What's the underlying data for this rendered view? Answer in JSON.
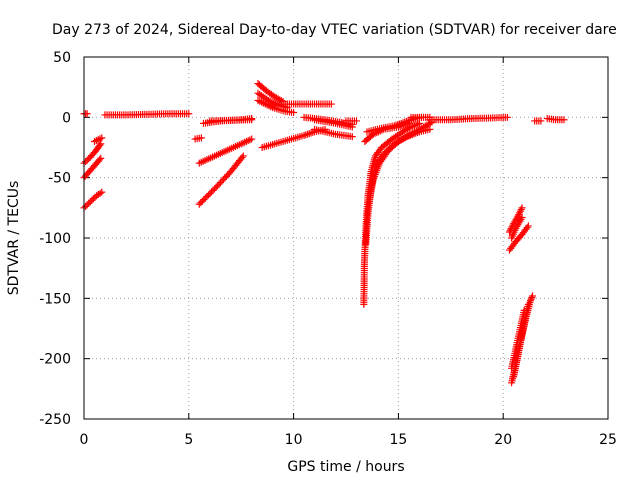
{
  "chart_data": {
    "type": "scatter",
    "title": "Day 273 of 2024, Sidereal Day-to-day VTEC variation (SDTVAR) for receiver dare",
    "xlabel": "GPS time / hours",
    "ylabel": "SDTVAR / TECUs",
    "xlim": [
      0,
      25
    ],
    "ylim": [
      -250,
      50
    ],
    "xticks": [
      0,
      5,
      10,
      15,
      20,
      25
    ],
    "yticks": [
      -250,
      -200,
      -150,
      -100,
      -50,
      0,
      50
    ],
    "grid": true,
    "marker": "plus",
    "color": "#ff0000",
    "series": [
      {
        "name": "s1",
        "points": [
          [
            0.0,
            3
          ],
          [
            0.15,
            3
          ]
        ]
      },
      {
        "name": "s2",
        "points": [
          [
            0.0,
            -38
          ],
          [
            0.3,
            -33
          ],
          [
            0.55,
            -28
          ],
          [
            0.8,
            -22
          ]
        ]
      },
      {
        "name": "s3",
        "points": [
          [
            0.0,
            -50
          ],
          [
            0.25,
            -45
          ],
          [
            0.5,
            -40
          ],
          [
            0.8,
            -34
          ]
        ]
      },
      {
        "name": "s4",
        "points": [
          [
            0.0,
            -75
          ],
          [
            0.3,
            -70
          ],
          [
            0.6,
            -65
          ],
          [
            0.85,
            -62
          ]
        ]
      },
      {
        "name": "s5",
        "points": [
          [
            0.5,
            -20
          ],
          [
            0.85,
            -17
          ]
        ]
      },
      {
        "name": "s6",
        "points": [
          [
            1.0,
            2
          ],
          [
            2.0,
            2
          ],
          [
            3.0,
            2.5
          ],
          [
            4.0,
            3
          ],
          [
            5.0,
            3
          ]
        ]
      },
      {
        "name": "s7",
        "points": [
          [
            5.3,
            -18
          ],
          [
            5.6,
            -17
          ]
        ]
      },
      {
        "name": "s8",
        "points": [
          [
            5.5,
            -38
          ],
          [
            6.5,
            -30
          ],
          [
            7.5,
            -22
          ],
          [
            8.0,
            -18
          ]
        ]
      },
      {
        "name": "s9",
        "points": [
          [
            5.5,
            -72
          ],
          [
            6.3,
            -58
          ],
          [
            7.0,
            -45
          ],
          [
            7.6,
            -32
          ]
        ]
      },
      {
        "name": "s10",
        "points": [
          [
            5.7,
            -5
          ],
          [
            6.5,
            -3
          ],
          [
            7.5,
            -2
          ],
          [
            8.0,
            -1
          ]
        ]
      },
      {
        "name": "s11",
        "points": [
          [
            6.0,
            -3
          ],
          [
            7.0,
            -2.5
          ],
          [
            8.0,
            -2
          ]
        ]
      },
      {
        "name": "s12",
        "points": [
          [
            8.3,
            28
          ],
          [
            8.7,
            22
          ],
          [
            9.1,
            17
          ],
          [
            9.5,
            13
          ]
        ]
      },
      {
        "name": "s13",
        "points": [
          [
            8.3,
            20
          ],
          [
            8.8,
            14
          ],
          [
            9.3,
            10
          ],
          [
            9.7,
            8
          ]
        ]
      },
      {
        "name": "s14",
        "points": [
          [
            8.3,
            14
          ],
          [
            9.0,
            8
          ],
          [
            9.6,
            5
          ],
          [
            10.0,
            4
          ]
        ]
      },
      {
        "name": "s15",
        "points": [
          [
            9.5,
            11
          ],
          [
            10.5,
            11
          ],
          [
            11.5,
            11
          ],
          [
            11.8,
            11
          ]
        ]
      },
      {
        "name": "s16",
        "points": [
          [
            8.5,
            -25
          ],
          [
            9.5,
            -20
          ],
          [
            10.5,
            -15
          ],
          [
            11.0,
            -12
          ],
          [
            11.5,
            -10
          ]
        ]
      },
      {
        "name": "s17",
        "points": [
          [
            10.5,
            0
          ],
          [
            11.5,
            -2
          ],
          [
            12.2,
            -4
          ],
          [
            12.8,
            -6
          ]
        ]
      },
      {
        "name": "s18",
        "points": [
          [
            11.0,
            -2
          ],
          [
            12.0,
            -5
          ],
          [
            12.8,
            -8
          ]
        ]
      },
      {
        "name": "s19",
        "points": [
          [
            11.0,
            -10
          ],
          [
            12.0,
            -14
          ],
          [
            12.8,
            -16
          ]
        ]
      },
      {
        "name": "s20",
        "points": [
          [
            12.5,
            -3
          ],
          [
            13.0,
            -3
          ]
        ]
      },
      {
        "name": "s21",
        "points": [
          [
            13.35,
            -155
          ],
          [
            13.38,
            -120
          ],
          [
            13.45,
            -90
          ],
          [
            13.55,
            -65
          ],
          [
            13.7,
            -45
          ],
          [
            13.9,
            -32
          ],
          [
            14.2,
            -25
          ],
          [
            14.7,
            -18
          ],
          [
            15.2,
            -12
          ],
          [
            15.6,
            -8
          ],
          [
            16.0,
            -5
          ]
        ]
      },
      {
        "name": "s22",
        "points": [
          [
            13.45,
            -105
          ],
          [
            13.55,
            -80
          ],
          [
            13.7,
            -58
          ],
          [
            13.9,
            -42
          ],
          [
            14.2,
            -32
          ],
          [
            14.8,
            -22
          ],
          [
            15.4,
            -16
          ],
          [
            16.0,
            -12
          ],
          [
            16.5,
            -10
          ]
        ]
      },
      {
        "name": "s23",
        "points": [
          [
            13.6,
            -70
          ],
          [
            13.8,
            -52
          ],
          [
            14.1,
            -38
          ],
          [
            14.5,
            -28
          ],
          [
            15.0,
            -20
          ],
          [
            15.6,
            -14
          ],
          [
            16.2,
            -8
          ],
          [
            16.6,
            -4
          ]
        ]
      },
      {
        "name": "s24",
        "points": [
          [
            13.4,
            -20
          ],
          [
            13.8,
            -14
          ],
          [
            14.3,
            -10
          ],
          [
            15.0,
            -8
          ],
          [
            15.5,
            -5
          ]
        ]
      },
      {
        "name": "s25",
        "points": [
          [
            13.5,
            -12
          ],
          [
            14.2,
            -9
          ],
          [
            14.8,
            -7
          ],
          [
            15.3,
            -4
          ],
          [
            15.8,
            -1
          ],
          [
            16.1,
            0
          ]
        ]
      },
      {
        "name": "s26",
        "points": [
          [
            15.6,
            0
          ],
          [
            16.0,
            0
          ],
          [
            16.5,
            0
          ]
        ]
      },
      {
        "name": "s27",
        "points": [
          [
            16.5,
            -2
          ],
          [
            17.5,
            -2
          ],
          [
            18.5,
            -1
          ],
          [
            19.5,
            -0.5
          ],
          [
            20.2,
            0
          ]
        ]
      },
      {
        "name": "s28",
        "points": [
          [
            20.3,
            -95
          ],
          [
            20.5,
            -88
          ],
          [
            20.7,
            -82
          ],
          [
            20.9,
            -75
          ]
        ]
      },
      {
        "name": "s29",
        "points": [
          [
            20.4,
            -100
          ],
          [
            20.6,
            -92
          ],
          [
            20.9,
            -83
          ]
        ]
      },
      {
        "name": "s30",
        "points": [
          [
            20.3,
            -110
          ],
          [
            20.6,
            -103
          ],
          [
            20.9,
            -97
          ],
          [
            21.2,
            -90
          ]
        ]
      },
      {
        "name": "s31",
        "points": [
          [
            20.4,
            -220
          ],
          [
            20.6,
            -205
          ],
          [
            20.8,
            -188
          ],
          [
            21.0,
            -172
          ],
          [
            21.1,
            -162
          ],
          [
            21.2,
            -155
          ]
        ]
      },
      {
        "name": "s32",
        "points": [
          [
            20.5,
            -215
          ],
          [
            20.7,
            -198
          ],
          [
            20.9,
            -180
          ],
          [
            21.1,
            -165
          ],
          [
            21.3,
            -152
          ],
          [
            21.4,
            -148
          ]
        ]
      },
      {
        "name": "s33",
        "points": [
          [
            20.4,
            -208
          ],
          [
            20.6,
            -192
          ],
          [
            20.8,
            -176
          ],
          [
            21.0,
            -160
          ]
        ]
      },
      {
        "name": "s34",
        "points": [
          [
            21.5,
            -3
          ],
          [
            21.8,
            -3
          ]
        ]
      },
      {
        "name": "s35",
        "points": [
          [
            22.1,
            -1
          ],
          [
            22.5,
            -2
          ],
          [
            22.9,
            -2
          ]
        ]
      }
    ]
  }
}
